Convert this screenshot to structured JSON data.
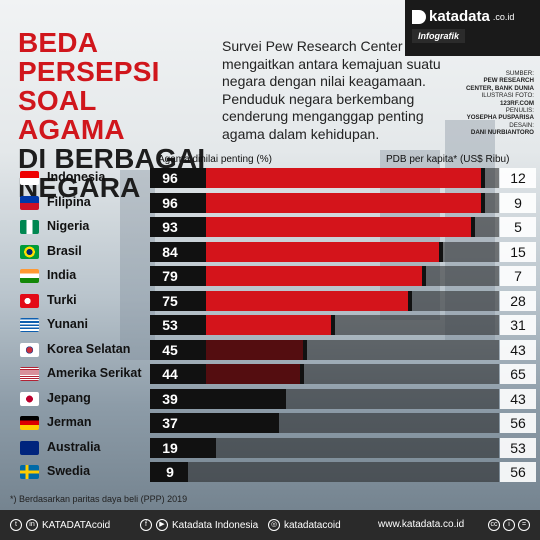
{
  "brand": {
    "name": "katadata",
    "suffix": ".co.id",
    "tag": "Infografik"
  },
  "title": {
    "line1": "BEDA PERSEPSI",
    "line2": "SOAL AGAMA",
    "line3": "DI BERBAGAI",
    "line4": "NEGARA"
  },
  "intro": "Survei Pew Research Center mengaitkan antara kemajuan suatu negara dengan nilai keagamaan. Penduduk negara berkembang cenderung menganggap penting agama dalam kehidupan.",
  "credits": {
    "source_label": "SUMBER:",
    "source_value": "PEW RESEARCH CENTER, BANK DUNIA",
    "photo_label": "ILUSTRASI FOTO:",
    "photo_value": "123RF.COM",
    "writer_label": "PENULIS:",
    "writer_value": "YOSEPHA PUSPARISA",
    "design_label": "DESAIN:",
    "design_value": "DANI NURBIANTORO"
  },
  "colors": {
    "accent": "#d4141b",
    "bar_dark": "#111111",
    "title_red": "#d0161c"
  },
  "chart_data": {
    "type": "bar",
    "categories": [
      "Indonesia",
      "Filipina",
      "Nigeria",
      "Brasil",
      "India",
      "Turki",
      "Yunani",
      "Korea Selatan",
      "Amerika Serikat",
      "Jepang",
      "Jerman",
      "Australia",
      "Swedia"
    ],
    "xlabel": "Agama dinilai penting (%)",
    "xlim": [
      0,
      100
    ],
    "series": [
      {
        "name": "Agama dinilai penting (%)",
        "values": [
          96,
          96,
          93,
          84,
          79,
          75,
          53,
          45,
          44,
          39,
          37,
          19,
          9
        ]
      },
      {
        "name": "PDB per kapita* (US$ Ribu)",
        "values": [
          12,
          9,
          5,
          15,
          7,
          28,
          31,
          43,
          65,
          43,
          56,
          53,
          56
        ]
      }
    ],
    "gdp_label": "PDB per kapita*",
    "gdp_unit": "(US$ Ribu)",
    "flags": [
      "indonesia",
      "philippines",
      "nigeria",
      "brazil",
      "india",
      "turkey",
      "greece",
      "south-korea",
      "usa",
      "japan",
      "germany",
      "australia",
      "sweden"
    ]
  },
  "footnote": "*) Berdasarkan paritas daya beli (PPP) 2019",
  "footer": {
    "social1": "KATADATAcoid",
    "social2": "Katadata Indonesia",
    "social3": "katadatacoid",
    "website": "www.katadata.co.id"
  }
}
